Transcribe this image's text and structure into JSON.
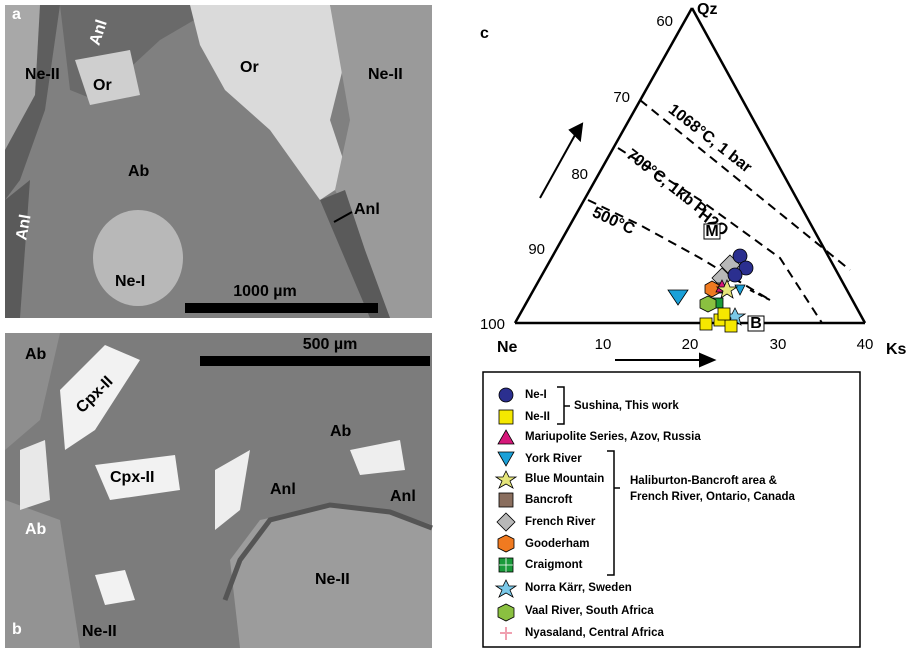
{
  "panel_a": {
    "label": "a",
    "annotations": [
      "Ne-II",
      "Anl",
      "Or",
      "Or",
      "Ne-II",
      "Ab",
      "Anl",
      "Anl",
      "Ne-I"
    ],
    "scale_bar": "1000 µm"
  },
  "panel_b": {
    "label": "b",
    "annotations": [
      "Ab",
      "Cpx-II",
      "Ab",
      "Cpx-II",
      "Anl",
      "Anl",
      "Ab",
      "Ne-II",
      "Ne-II"
    ],
    "scale_bar": "500 µm"
  },
  "panel_c": {
    "label": "c",
    "apex_labels": [
      "Qz",
      "Ne",
      "Ks"
    ],
    "qz_ticks": [
      "60",
      "70",
      "80",
      "90",
      "100"
    ],
    "ks_ticks": [
      "10",
      "20",
      "30",
      "40"
    ],
    "isotherms": [
      "1068°C, 1 bar",
      "700°C, 1kb P",
      "500°C"
    ],
    "subscript": "H2O",
    "points": [
      "M",
      "B"
    ],
    "legend": {
      "items": [
        "Ne-I",
        "Ne-II",
        "Mariupolite Series, Azov, Russia",
        "York River",
        "Blue Mountain",
        "Bancroft",
        "French River",
        "Gooderham",
        "Craigmont",
        "Norra Kärr, Sweden",
        "Vaal River, South Africa",
        "Nyasaland, Central Africa"
      ],
      "groups": [
        "Sushina, This work",
        "Haliburton-Bancroft area &",
        "French River, Ontario, Canada"
      ]
    }
  }
}
